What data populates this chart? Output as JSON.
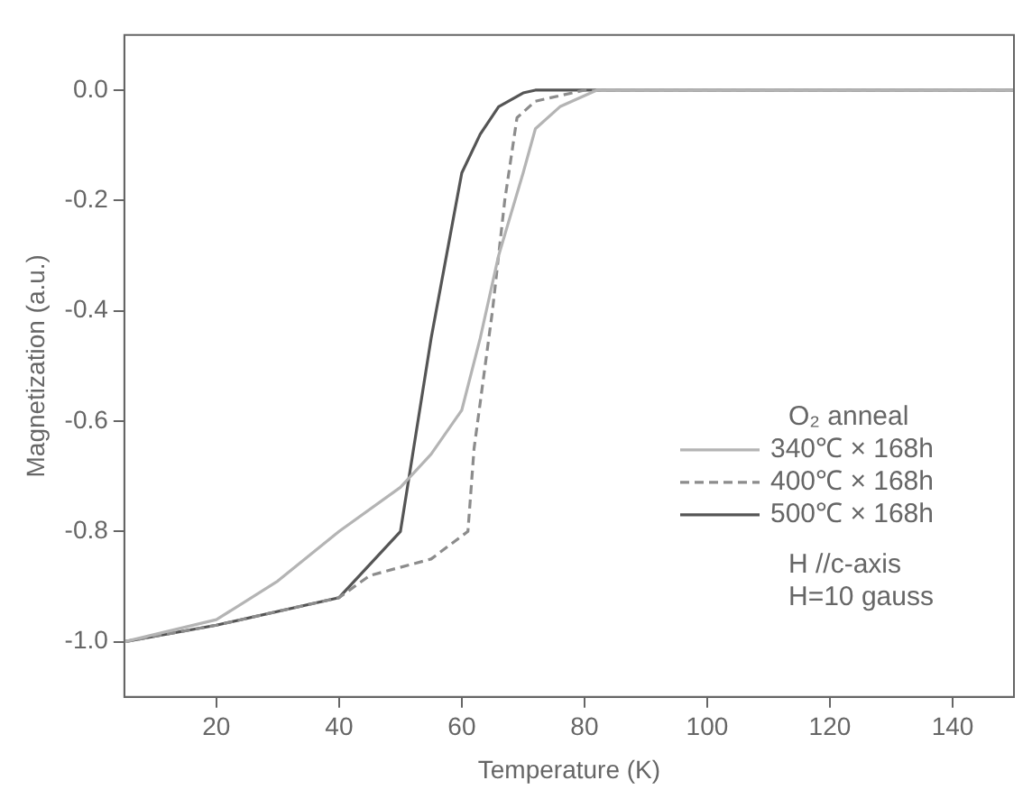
{
  "chart_data": {
    "type": "line",
    "xlabel": "Temperature (K)",
    "ylabel": "Magnetization (a.u.)",
    "legend_title": "O₂ anneal",
    "legend": "bottom right",
    "grid": false,
    "marker": "none",
    "xlim": [
      5,
      150
    ],
    "xticks": [
      20,
      40,
      60,
      80,
      100,
      120,
      140
    ],
    "ylim": [
      -1.1,
      0.1
    ],
    "yticks": [
      {
        "value": -1,
        "label": "-1.0"
      },
      {
        "value": -0.8,
        "label": "-0.8"
      },
      {
        "value": -0.6,
        "label": "-0.6"
      },
      {
        "value": -0.4,
        "label": "-0.4"
      },
      {
        "value": -0.2,
        "label": "-0.2"
      },
      {
        "value": 0,
        "label": "0.0"
      }
    ],
    "annotations": [
      "H //c-axis",
      "H=10 gauss"
    ],
    "series": [
      {
        "name": "340℃ × 168h",
        "color": "#b4b4b4",
        "line_style": "solid",
        "x": [
          5,
          20,
          30,
          40,
          50,
          55,
          60,
          63,
          66,
          70,
          72,
          76,
          82,
          150
        ],
        "values": [
          -1,
          -0.96,
          -0.89,
          -0.8,
          -0.72,
          -0.66,
          -0.58,
          -0.45,
          -0.3,
          -0.15,
          -0.07,
          -0.03,
          0,
          0
        ]
      },
      {
        "name": "400℃ × 168h",
        "color": "#8c8c8c",
        "line_style": "dashed",
        "x": [
          5,
          20,
          40,
          45,
          55,
          61,
          62,
          65,
          67,
          69,
          72,
          80,
          150
        ],
        "values": [
          -1,
          -0.97,
          -0.92,
          -0.88,
          -0.85,
          -0.8,
          -0.65,
          -0.4,
          -0.2,
          -0.05,
          -0.02,
          0,
          0
        ]
      },
      {
        "name": "500℃ × 168h",
        "color": "#555555",
        "line_style": "solid",
        "x": [
          5,
          20,
          40,
          50,
          55,
          60,
          63,
          66,
          70,
          72,
          150
        ],
        "values": [
          -1,
          -0.97,
          -0.92,
          -0.8,
          -0.45,
          -0.15,
          -0.08,
          -0.03,
          -0.005,
          0,
          0
        ]
      }
    ]
  }
}
